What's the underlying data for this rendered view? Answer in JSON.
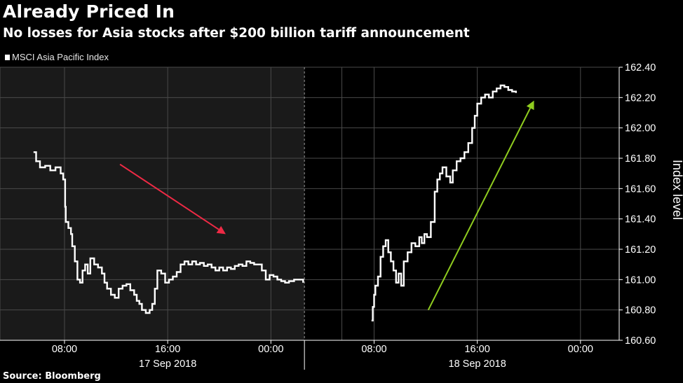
{
  "title": "Already Priced In",
  "subtitle": "No losses for Asia stocks after $200 billion tariff announcement",
  "legend": {
    "label": "MSCI Asia Pacific Index",
    "swatch_color": "#ffffff"
  },
  "source": "Source: Bloomberg",
  "colors": {
    "background": "#000000",
    "shaded_session": "#1a1a1a",
    "gridline": "#4a4a4a",
    "series_line": "#ffffff",
    "down_arrow": "#ee2a45",
    "up_arrow": "#8fcc1f"
  },
  "chart_data": {
    "type": "line",
    "title": "Already Priced In",
    "subtitle": "No losses for Asia stocks after $200 billion tariff announcement",
    "ylabel": "Index level",
    "ylim": [
      160.6,
      162.4
    ],
    "y_axis_side": "right",
    "yticks": [
      160.6,
      160.8,
      161.0,
      161.2,
      161.4,
      161.6,
      161.8,
      162.0,
      162.2,
      162.4
    ],
    "ytick_labels": [
      "160.60",
      "160.80",
      "161.00",
      "161.20",
      "161.40",
      "161.60",
      "161.80",
      "162.00",
      "162.20",
      "162.40"
    ],
    "x_unit": "hours since 00:00 on 17 Sep 2018",
    "xlim": [
      3,
      51
    ],
    "xticks": [
      8,
      16,
      24,
      32,
      40,
      48
    ],
    "xtick_labels": [
      "08:00",
      "16:00",
      "00:00",
      "08:00",
      "16:00",
      "00:00"
    ],
    "x_groups": [
      {
        "label": "17 Sep 2018",
        "center": 16
      },
      {
        "label": "18 Sep 2018",
        "center": 40
      }
    ],
    "shaded_session": [
      3,
      26.6
    ],
    "session_divider": 26.6,
    "vertical_gridlines": [
      3,
      8,
      16,
      24,
      29.5,
      32,
      40,
      48
    ],
    "grid": true,
    "series": [
      {
        "name": "MSCI Asia Pacific Index",
        "segments": [
          {
            "points": [
              [
                5.6,
                161.84
              ],
              [
                5.8,
                161.78
              ],
              [
                6.1,
                161.74
              ],
              [
                6.5,
                161.75
              ],
              [
                6.9,
                161.72
              ],
              [
                7.3,
                161.74
              ],
              [
                7.7,
                161.7
              ],
              [
                7.9,
                161.66
              ],
              [
                8.05,
                161.48
              ],
              [
                8.1,
                161.38
              ],
              [
                8.3,
                161.34
              ],
              [
                8.5,
                161.3
              ],
              [
                8.6,
                161.22
              ],
              [
                8.8,
                161.12
              ],
              [
                9.0,
                161.0
              ],
              [
                9.2,
                160.98
              ],
              [
                9.4,
                161.06
              ],
              [
                9.6,
                161.1
              ],
              [
                9.8,
                161.04
              ],
              [
                10.0,
                161.14
              ],
              [
                10.3,
                161.1
              ],
              [
                10.6,
                161.08
              ],
              [
                10.9,
                161.04
              ],
              [
                11.1,
                160.98
              ],
              [
                11.3,
                160.94
              ],
              [
                11.6,
                160.9
              ],
              [
                11.9,
                160.88
              ],
              [
                12.2,
                160.94
              ],
              [
                12.5,
                160.96
              ],
              [
                12.8,
                160.97
              ],
              [
                13.1,
                160.93
              ],
              [
                13.4,
                160.9
              ],
              [
                13.6,
                160.86
              ],
              [
                13.8,
                160.84
              ],
              [
                14.0,
                160.8
              ],
              [
                14.3,
                160.78
              ],
              [
                14.6,
                160.8
              ],
              [
                14.8,
                160.84
              ],
              [
                15.0,
                160.94
              ],
              [
                15.2,
                161.06
              ],
              [
                15.5,
                161.04
              ],
              [
                15.8,
                160.98
              ],
              [
                16.1,
                161.0
              ],
              [
                16.4,
                161.02
              ],
              [
                16.7,
                161.05
              ],
              [
                17.0,
                161.1
              ],
              [
                17.3,
                161.12
              ],
              [
                17.6,
                161.1
              ],
              [
                17.9,
                161.12
              ],
              [
                18.2,
                161.1
              ],
              [
                18.5,
                161.11
              ],
              [
                18.8,
                161.09
              ],
              [
                19.1,
                161.1
              ],
              [
                19.4,
                161.08
              ],
              [
                19.7,
                161.06
              ],
              [
                20.0,
                161.08
              ],
              [
                20.3,
                161.06
              ],
              [
                20.6,
                161.08
              ],
              [
                20.9,
                161.07
              ],
              [
                21.2,
                161.09
              ],
              [
                21.5,
                161.1
              ],
              [
                21.8,
                161.09
              ],
              [
                22.1,
                161.12
              ],
              [
                22.4,
                161.11
              ],
              [
                22.7,
                161.1
              ],
              [
                23.0,
                161.1
              ],
              [
                23.3,
                161.06
              ],
              [
                23.6,
                161.0
              ],
              [
                23.9,
                161.03
              ],
              [
                24.2,
                161.02
              ],
              [
                24.5,
                161.0
              ],
              [
                24.8,
                160.99
              ],
              [
                25.1,
                160.98
              ],
              [
                25.4,
                160.99
              ],
              [
                25.8,
                161.0
              ],
              [
                26.2,
                161.0
              ],
              [
                26.5,
                160.98
              ]
            ]
          },
          {
            "points": [
              [
                31.8,
                160.73
              ],
              [
                31.9,
                160.82
              ],
              [
                32.0,
                160.9
              ],
              [
                32.1,
                160.96
              ],
              [
                32.3,
                161.02
              ],
              [
                32.5,
                161.15
              ],
              [
                32.7,
                161.22
              ],
              [
                32.9,
                161.26
              ],
              [
                33.1,
                161.18
              ],
              [
                33.3,
                161.12
              ],
              [
                33.5,
                161.06
              ],
              [
                33.7,
                160.98
              ],
              [
                33.9,
                161.04
              ],
              [
                34.1,
                160.96
              ],
              [
                34.3,
                161.12
              ],
              [
                34.6,
                161.18
              ],
              [
                34.9,
                161.24
              ],
              [
                35.2,
                161.22
              ],
              [
                35.5,
                161.28
              ],
              [
                35.7,
                161.24
              ],
              [
                35.9,
                161.3
              ],
              [
                36.1,
                161.28
              ],
              [
                36.4,
                161.38
              ],
              [
                36.7,
                161.58
              ],
              [
                36.9,
                161.66
              ],
              [
                37.1,
                161.7
              ],
              [
                37.3,
                161.74
              ],
              [
                37.6,
                161.68
              ],
              [
                37.9,
                161.64
              ],
              [
                38.1,
                161.72
              ],
              [
                38.4,
                161.78
              ],
              [
                38.7,
                161.8
              ],
              [
                39.0,
                161.84
              ],
              [
                39.3,
                161.9
              ],
              [
                39.6,
                162.0
              ],
              [
                39.8,
                162.08
              ],
              [
                40.0,
                162.16
              ],
              [
                40.3,
                162.2
              ],
              [
                40.6,
                162.22
              ],
              [
                40.9,
                162.2
              ],
              [
                41.2,
                162.24
              ],
              [
                41.5,
                162.26
              ],
              [
                41.8,
                162.28
              ],
              [
                42.1,
                162.27
              ],
              [
                42.4,
                162.25
              ],
              [
                42.7,
                162.24
              ],
              [
                43.0,
                162.23
              ]
            ]
          }
        ]
      }
    ],
    "annotations": [
      {
        "type": "arrow",
        "direction": "down",
        "color": "#ee2a45",
        "from": [
          12.3,
          161.76
        ],
        "to": [
          20.5,
          161.3
        ]
      },
      {
        "type": "arrow",
        "direction": "up",
        "color": "#8fcc1f",
        "from": [
          36.2,
          160.8
        ],
        "to": [
          44.4,
          162.18
        ]
      }
    ]
  }
}
